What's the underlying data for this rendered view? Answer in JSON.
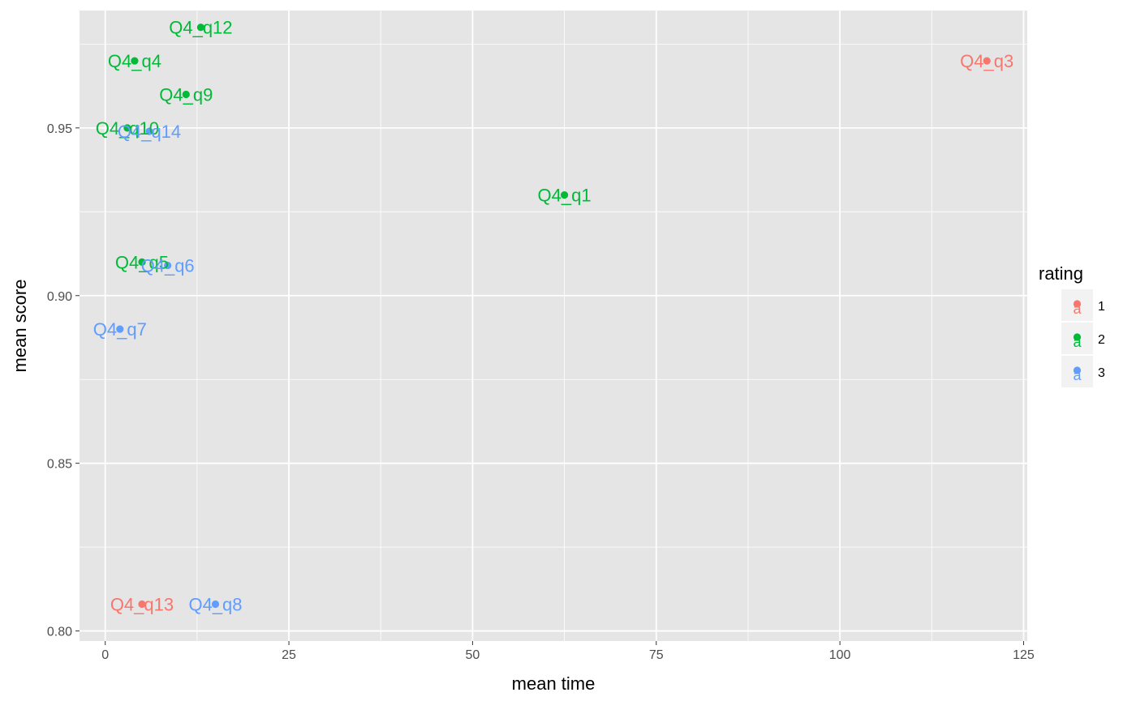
{
  "chart_data": {
    "type": "scatter",
    "xlabel": "mean time",
    "ylabel": "mean score",
    "xlim": [
      -3.5,
      125.5
    ],
    "ylim": [
      0.797,
      0.985
    ],
    "x_ticks": [
      0,
      25,
      50,
      75,
      100,
      125
    ],
    "x_tick_labels": [
      "0",
      "25",
      "50",
      "75",
      "100",
      "125"
    ],
    "y_ticks": [
      0.8,
      0.85,
      0.9,
      0.95
    ],
    "y_tick_labels": [
      "0.80",
      "0.85",
      "0.90",
      "0.95"
    ],
    "grid": true,
    "legend": {
      "title": "rating",
      "position": "right",
      "entries": [
        {
          "label": "1",
          "color": "#F8766D"
        },
        {
          "label": "2",
          "color": "#00BA38"
        },
        {
          "label": "3",
          "color": "#619CFF"
        }
      ]
    },
    "points": [
      {
        "label": "Q4_q12",
        "x": 13.0,
        "y": 0.98,
        "rating": "2"
      },
      {
        "label": "Q4_q4",
        "x": 4.0,
        "y": 0.97,
        "rating": "2"
      },
      {
        "label": "Q4_q3",
        "x": 120.0,
        "y": 0.97,
        "rating": "1"
      },
      {
        "label": "Q4_q9",
        "x": 11.0,
        "y": 0.96,
        "rating": "2"
      },
      {
        "label": "Q4_q10",
        "x": 3.0,
        "y": 0.95,
        "rating": "2"
      },
      {
        "label": "Q4_q14",
        "x": 6.0,
        "y": 0.949,
        "rating": "3"
      },
      {
        "label": "Q4_q1",
        "x": 62.5,
        "y": 0.93,
        "rating": "2"
      },
      {
        "label": "Q4_q5",
        "x": 5.0,
        "y": 0.91,
        "rating": "2"
      },
      {
        "label": "Q4_q6",
        "x": 8.5,
        "y": 0.909,
        "rating": "3"
      },
      {
        "label": "Q4_q7",
        "x": 2.0,
        "y": 0.89,
        "rating": "3"
      },
      {
        "label": "Q4_q13",
        "x": 5.0,
        "y": 0.808,
        "rating": "1"
      },
      {
        "label": "Q4_q8",
        "x": 15.0,
        "y": 0.808,
        "rating": "3"
      }
    ],
    "colors": {
      "panel_bg": "#E5E5E5",
      "grid": "#FFFFFF",
      "tick_text": "#4D4D4D"
    }
  }
}
